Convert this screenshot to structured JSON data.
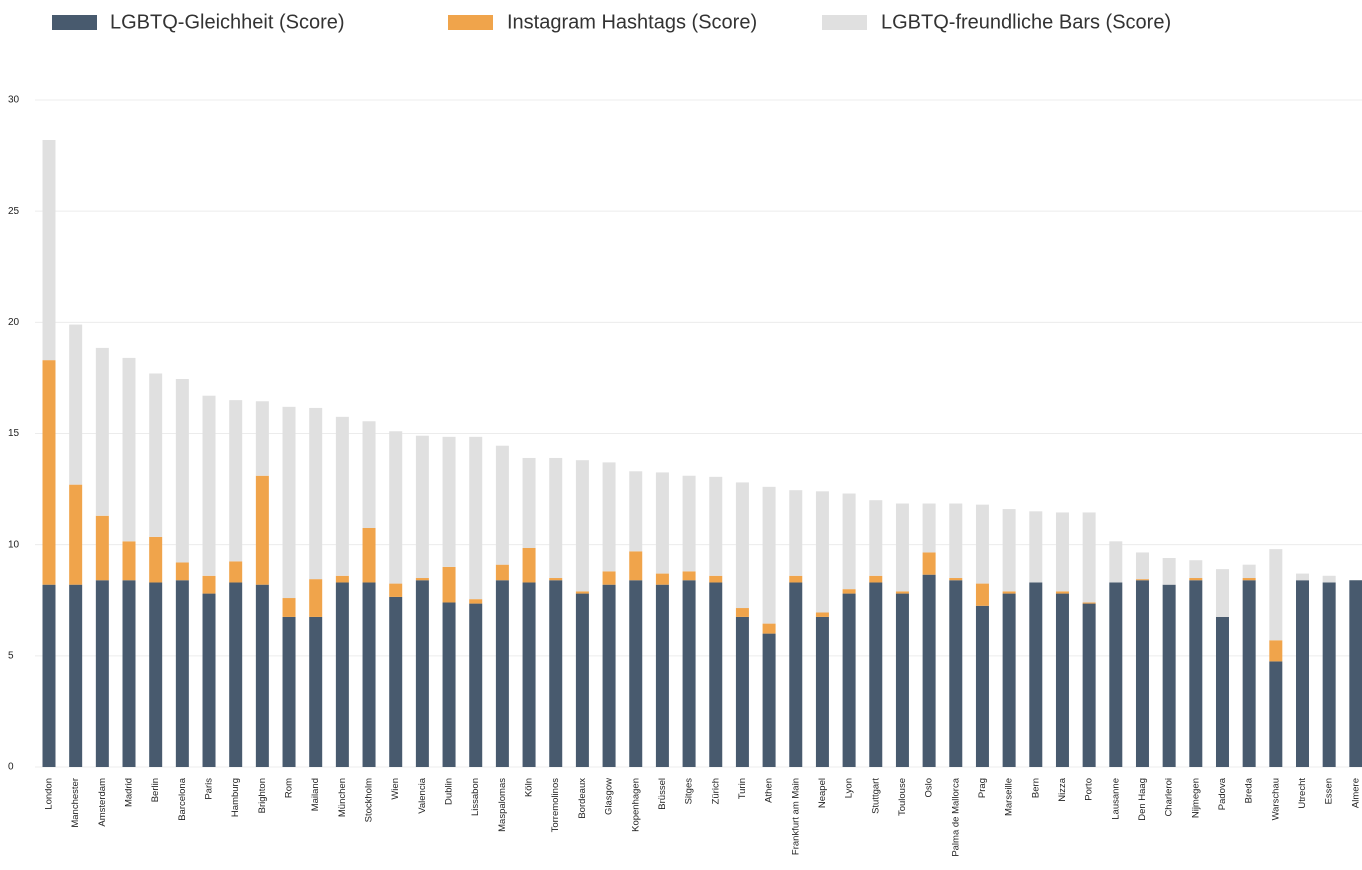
{
  "chart_data": {
    "type": "stacked_bar",
    "categories": [
      "London",
      "Manchester",
      "Amsterdam",
      "Madrid",
      "Berlin",
      "Barcelona",
      "Paris",
      "Hamburg",
      "Brighton",
      "Rom",
      "Mailand",
      "München",
      "Stockholm",
      "Wien",
      "Valencia",
      "Dublin",
      "Lissabon",
      "Maspalomas",
      "Köln",
      "Torremolinos",
      "Bordeaux",
      "Glasgow",
      "Kopenhagen",
      "Brüssel",
      "Sitges",
      "Zürich",
      "Turin",
      "Athen",
      "Frankfurt am Main",
      "Neapel",
      "Lyon",
      "Stuttgart",
      "Toulouse",
      "Oslo",
      "Palma de Mallorca",
      "Prag",
      "Marseille",
      "Bern",
      "Nizza",
      "Porto",
      "Lausanne",
      "Den Haag",
      "Charleroi",
      "Nijmegen",
      "Padova",
      "Breda",
      "Warschau",
      "Utrecht",
      "Essen",
      "Almere"
    ],
    "series": [
      {
        "name": "LGBTQ-Gleichheit (Score)",
        "color": "#485a6e",
        "values": [
          8.2,
          8.2,
          8.4,
          8.4,
          8.3,
          8.4,
          7.8,
          8.3,
          8.2,
          6.75,
          6.75,
          8.3,
          8.3,
          7.65,
          8.4,
          7.4,
          7.35,
          8.4,
          8.3,
          8.4,
          7.8,
          8.2,
          8.4,
          8.2,
          8.4,
          8.3,
          6.75,
          6.0,
          8.3,
          6.75,
          7.8,
          8.3,
          7.8,
          8.65,
          8.4,
          7.25,
          7.8,
          8.3,
          7.8,
          7.35,
          8.3,
          8.4,
          8.2,
          8.4,
          6.75,
          8.4,
          4.75,
          8.4,
          8.3,
          8.4
        ]
      },
      {
        "name": "Instagram Hashtags (Score)",
        "color": "#f0a44b",
        "values": [
          10.1,
          4.5,
          2.9,
          1.75,
          2.05,
          0.8,
          0.8,
          0.95,
          4.9,
          0.85,
          1.7,
          0.3,
          2.45,
          0.6,
          0.1,
          1.6,
          0.2,
          0.7,
          1.55,
          0.1,
          0.1,
          0.6,
          1.3,
          0.5,
          0.4,
          0.3,
          0.4,
          0.45,
          0.3,
          0.2,
          0.2,
          0.3,
          0.1,
          1.0,
          0.1,
          1.0,
          0.1,
          0,
          0.1,
          0.05,
          0,
          0.05,
          0,
          0.1,
          0,
          0.1,
          0.95,
          0,
          0,
          0
        ]
      },
      {
        "name": "LGBTQ-freundliche Bars (Score)",
        "color": "#e0e0e0",
        "values": [
          9.9,
          7.2,
          7.55,
          8.25,
          7.35,
          8.25,
          8.1,
          7.25,
          3.35,
          8.6,
          7.7,
          7.15,
          4.8,
          6.85,
          6.4,
          5.85,
          7.3,
          5.35,
          4.05,
          5.4,
          5.9,
          4.9,
          3.6,
          4.55,
          4.3,
          4.45,
          5.65,
          6.15,
          3.85,
          5.45,
          4.3,
          3.4,
          3.95,
          2.2,
          3.35,
          3.55,
          3.7,
          3.2,
          3.55,
          4.05,
          1.85,
          1.2,
          1.2,
          0.8,
          2.15,
          0.6,
          4.1,
          0.3,
          0.3,
          0
        ]
      }
    ],
    "ylim": [
      0,
      30
    ],
    "yticks": [
      0,
      5,
      10,
      15,
      20,
      25,
      30
    ],
    "grid": true
  }
}
